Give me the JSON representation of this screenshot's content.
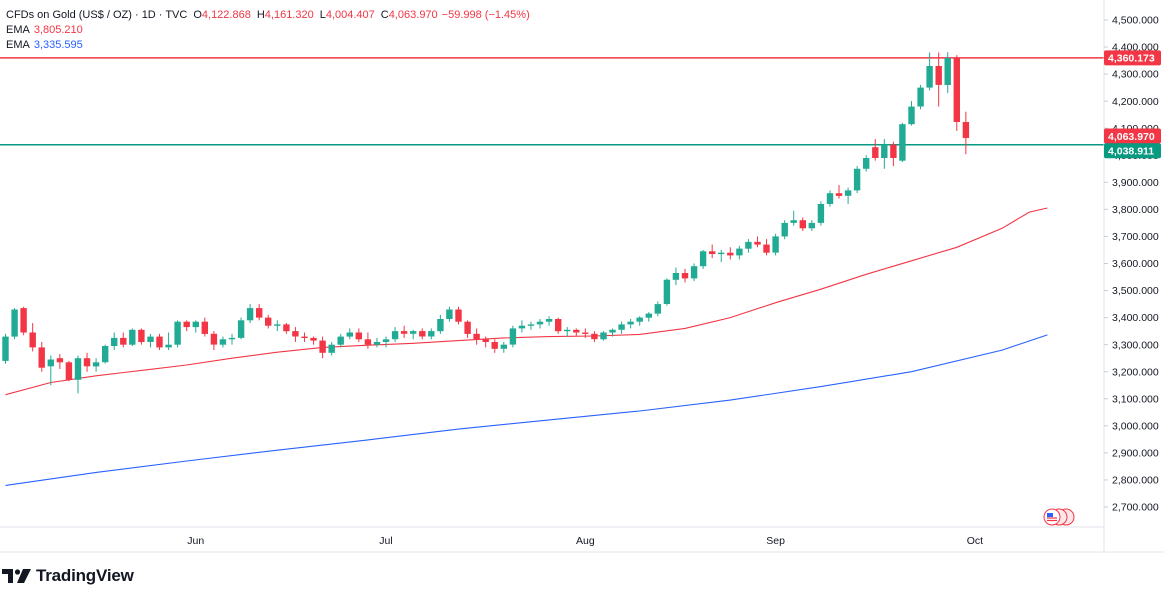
{
  "legend": {
    "symbol": "CFDs on Gold (US$ / OZ) · 1D · TVC",
    "o_label": "O",
    "o_value": "4,122.868",
    "h_label": "H",
    "h_value": "4,161.320",
    "l_label": "L",
    "l_value": "4,004.407",
    "c_label": "C",
    "c_value": "4,063.970",
    "change": "−59.998 (−1.45%)",
    "ema1_label": "EMA",
    "ema1_value": "3,805.210",
    "ema2_label": "EMA",
    "ema2_value": "3,335.595"
  },
  "brand": {
    "name": "TradingView"
  },
  "colors": {
    "up": "#22ab94",
    "down": "#f23645",
    "ema_fast": "#f23645",
    "ema_slow": "#2962ff",
    "resistance": "#f23645",
    "support": "#089981",
    "grid_border": "#e0e3eb"
  },
  "chart_data": {
    "type": "candlestick",
    "timeframe": "1D",
    "ylim": [
      2640,
      4540
    ],
    "y_ticks": [
      "2,700.000",
      "2,800.000",
      "2,900.000",
      "3,000.000",
      "3,100.000",
      "3,200.000",
      "3,300.000",
      "3,400.000",
      "3,500.000",
      "3,600.000",
      "3,700.000",
      "3,800.000",
      "3,900.000",
      "4,000.000",
      "4,100.000",
      "4,200.000",
      "4,300.000",
      "4,400.000",
      "4,500.000"
    ],
    "x_labels": [
      {
        "label": "Jun",
        "index": 21
      },
      {
        "label": "Jul",
        "index": 42
      },
      {
        "label": "Aug",
        "index": 64
      },
      {
        "label": "Sep",
        "index": 85
      },
      {
        "label": "Oct",
        "index": 107
      }
    ],
    "candles": [
      [
        3240,
        3340,
        3230,
        3330
      ],
      [
        3330,
        3435,
        3320,
        3430
      ],
      [
        3435,
        3440,
        3335,
        3345
      ],
      [
        3345,
        3380,
        3275,
        3290
      ],
      [
        3290,
        3310,
        3200,
        3215
      ],
      [
        3220,
        3260,
        3150,
        3245
      ],
      [
        3250,
        3265,
        3210,
        3235
      ],
      [
        3235,
        3240,
        3165,
        3170
      ],
      [
        3170,
        3260,
        3120,
        3250
      ],
      [
        3250,
        3270,
        3200,
        3220
      ],
      [
        3220,
        3250,
        3200,
        3235
      ],
      [
        3235,
        3300,
        3230,
        3295
      ],
      [
        3295,
        3345,
        3280,
        3325
      ],
      [
        3325,
        3345,
        3290,
        3300
      ],
      [
        3300,
        3360,
        3295,
        3355
      ],
      [
        3355,
        3360,
        3300,
        3310
      ],
      [
        3310,
        3340,
        3290,
        3330
      ],
      [
        3330,
        3340,
        3280,
        3290
      ],
      [
        3290,
        3345,
        3280,
        3300
      ],
      [
        3300,
        3390,
        3290,
        3385
      ],
      [
        3385,
        3390,
        3350,
        3365
      ],
      [
        3365,
        3390,
        3345,
        3385
      ],
      [
        3385,
        3400,
        3330,
        3340
      ],
      [
        3340,
        3350,
        3280,
        3300
      ],
      [
        3300,
        3330,
        3290,
        3320
      ],
      [
        3320,
        3340,
        3300,
        3325
      ],
      [
        3325,
        3400,
        3320,
        3390
      ],
      [
        3390,
        3450,
        3380,
        3435
      ],
      [
        3435,
        3450,
        3390,
        3400
      ],
      [
        3400,
        3410,
        3360,
        3370
      ],
      [
        3370,
        3390,
        3350,
        3375
      ],
      [
        3375,
        3380,
        3340,
        3350
      ],
      [
        3350,
        3365,
        3310,
        3330
      ],
      [
        3330,
        3345,
        3310,
        3325
      ],
      [
        3325,
        3330,
        3300,
        3315
      ],
      [
        3315,
        3330,
        3250,
        3270
      ],
      [
        3270,
        3310,
        3260,
        3300
      ],
      [
        3300,
        3340,
        3290,
        3330
      ],
      [
        3330,
        3360,
        3320,
        3345
      ],
      [
        3345,
        3360,
        3310,
        3320
      ],
      [
        3320,
        3345,
        3285,
        3300
      ],
      [
        3300,
        3325,
        3290,
        3310
      ],
      [
        3310,
        3330,
        3290,
        3320
      ],
      [
        3320,
        3365,
        3310,
        3350
      ],
      [
        3350,
        3370,
        3325,
        3340
      ],
      [
        3340,
        3355,
        3320,
        3350
      ],
      [
        3350,
        3360,
        3320,
        3330
      ],
      [
        3330,
        3360,
        3320,
        3350
      ],
      [
        3350,
        3410,
        3340,
        3395
      ],
      [
        3395,
        3440,
        3385,
        3430
      ],
      [
        3430,
        3440,
        3375,
        3385
      ],
      [
        3385,
        3390,
        3325,
        3340
      ],
      [
        3340,
        3360,
        3300,
        3320
      ],
      [
        3320,
        3330,
        3290,
        3310
      ],
      [
        3310,
        3320,
        3270,
        3285
      ],
      [
        3285,
        3310,
        3270,
        3300
      ],
      [
        3300,
        3370,
        3290,
        3360
      ],
      [
        3360,
        3390,
        3345,
        3370
      ],
      [
        3370,
        3385,
        3355,
        3375
      ],
      [
        3375,
        3395,
        3360,
        3385
      ],
      [
        3385,
        3405,
        3370,
        3395
      ],
      [
        3395,
        3400,
        3340,
        3350
      ],
      [
        3350,
        3365,
        3330,
        3355
      ],
      [
        3355,
        3360,
        3330,
        3345
      ],
      [
        3345,
        3360,
        3325,
        3340
      ],
      [
        3340,
        3350,
        3310,
        3320
      ],
      [
        3320,
        3350,
        3315,
        3345
      ],
      [
        3345,
        3360,
        3330,
        3355
      ],
      [
        3355,
        3385,
        3340,
        3375
      ],
      [
        3375,
        3395,
        3360,
        3385
      ],
      [
        3385,
        3405,
        3370,
        3400
      ],
      [
        3400,
        3420,
        3385,
        3415
      ],
      [
        3415,
        3460,
        3405,
        3450
      ],
      [
        3450,
        3545,
        3445,
        3540
      ],
      [
        3540,
        3585,
        3520,
        3565
      ],
      [
        3565,
        3580,
        3530,
        3545
      ],
      [
        3545,
        3600,
        3535,
        3590
      ],
      [
        3590,
        3650,
        3580,
        3645
      ],
      [
        3645,
        3670,
        3620,
        3635
      ],
      [
        3635,
        3650,
        3605,
        3640
      ],
      [
        3640,
        3660,
        3615,
        3630
      ],
      [
        3630,
        3665,
        3615,
        3655
      ],
      [
        3655,
        3690,
        3640,
        3680
      ],
      [
        3680,
        3700,
        3660,
        3670
      ],
      [
        3670,
        3690,
        3630,
        3640
      ],
      [
        3640,
        3710,
        3630,
        3700
      ],
      [
        3700,
        3760,
        3690,
        3750
      ],
      [
        3750,
        3795,
        3740,
        3760
      ],
      [
        3760,
        3770,
        3720,
        3730
      ],
      [
        3730,
        3760,
        3720,
        3750
      ],
      [
        3750,
        3830,
        3740,
        3820
      ],
      [
        3820,
        3870,
        3810,
        3860
      ],
      [
        3860,
        3890,
        3840,
        3850
      ],
      [
        3850,
        3880,
        3820,
        3870
      ],
      [
        3870,
        3960,
        3860,
        3950
      ],
      [
        3950,
        4000,
        3940,
        3990
      ],
      [
        4030,
        4060,
        3980,
        3990
      ],
      [
        3990,
        4060,
        3950,
        4040
      ],
      [
        4040,
        4050,
        3960,
        3990
      ],
      [
        3980,
        4120,
        3975,
        4115
      ],
      [
        4115,
        4200,
        4110,
        4180
      ],
      [
        4180,
        4260,
        4170,
        4250
      ],
      [
        4250,
        4380,
        4240,
        4330
      ],
      [
        4330,
        4380,
        4180,
        4260
      ],
      [
        4260,
        4381,
        4230,
        4360
      ],
      [
        4360,
        4370,
        4090,
        4123
      ],
      [
        4123,
        4161,
        4004,
        4064
      ]
    ],
    "ema_fast": {
      "name": "EMA",
      "last": 3805.21,
      "points": [
        [
          0,
          3115
        ],
        [
          5,
          3160
        ],
        [
          10,
          3185
        ],
        [
          15,
          3205
        ],
        [
          20,
          3225
        ],
        [
          25,
          3250
        ],
        [
          30,
          3272
        ],
        [
          35,
          3290
        ],
        [
          40,
          3298
        ],
        [
          45,
          3305
        ],
        [
          50,
          3315
        ],
        [
          55,
          3325
        ],
        [
          60,
          3330
        ],
        [
          65,
          3332
        ],
        [
          70,
          3338
        ],
        [
          75,
          3360
        ],
        [
          80,
          3400
        ],
        [
          85,
          3455
        ],
        [
          90,
          3505
        ],
        [
          95,
          3560
        ],
        [
          100,
          3610
        ],
        [
          105,
          3660
        ],
        [
          110,
          3730
        ],
        [
          113,
          3790
        ],
        [
          115,
          3805
        ]
      ]
    },
    "ema_slow": {
      "name": "EMA",
      "last": 3335.595,
      "points": [
        [
          0,
          2780
        ],
        [
          10,
          2828
        ],
        [
          20,
          2870
        ],
        [
          30,
          2910
        ],
        [
          40,
          2948
        ],
        [
          50,
          2988
        ],
        [
          60,
          3022
        ],
        [
          70,
          3055
        ],
        [
          80,
          3095
        ],
        [
          90,
          3145
        ],
        [
          100,
          3200
        ],
        [
          110,
          3280
        ],
        [
          115,
          3336
        ]
      ]
    },
    "levels": [
      {
        "label": "4,360.173",
        "value": 4360.173,
        "color": "#f23645"
      },
      {
        "label": "4,038.911",
        "value": 4038.911,
        "color": "#089981"
      }
    ],
    "last_price": {
      "label": "4,063.970",
      "value": 4063.97,
      "color": "#f23645"
    }
  }
}
